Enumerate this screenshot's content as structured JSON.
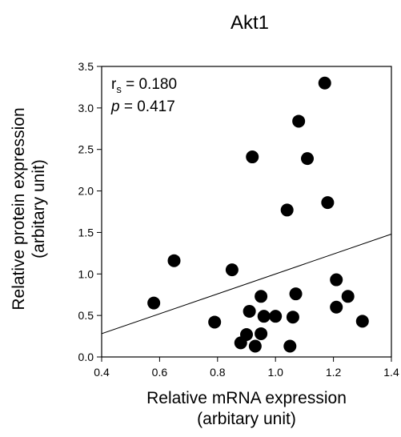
{
  "chart_data": {
    "type": "scatter",
    "title": "Akt1",
    "xlabel": [
      "Relative mRNA expression",
      "(arbitary unit)"
    ],
    "ylabel": [
      "Relative protein expression",
      "(arbitary unit)"
    ],
    "xlim": [
      0.4,
      1.4
    ],
    "ylim": [
      0.0,
      3.5
    ],
    "xticks": [
      "0.4",
      "0.6",
      "0.8",
      "1.0",
      "1.2",
      "1.4"
    ],
    "yticks": [
      "0.0",
      "0.5",
      "1.0",
      "1.5",
      "2.0",
      "2.5",
      "3.0",
      "3.5"
    ],
    "grid": false,
    "legend": "none",
    "annotations": {
      "rs_symbol": "r",
      "rs_subscript": "s",
      "rs_value": " = 0.180",
      "p_symbol": "p",
      "p_value": " = 0.417"
    },
    "points": [
      {
        "x": 0.58,
        "y": 0.65
      },
      {
        "x": 0.65,
        "y": 1.16
      },
      {
        "x": 0.79,
        "y": 0.42
      },
      {
        "x": 0.85,
        "y": 1.05
      },
      {
        "x": 0.88,
        "y": 0.17
      },
      {
        "x": 0.9,
        "y": 0.27
      },
      {
        "x": 0.91,
        "y": 0.55
      },
      {
        "x": 0.92,
        "y": 2.41
      },
      {
        "x": 0.93,
        "y": 0.13
      },
      {
        "x": 0.95,
        "y": 0.73
      },
      {
        "x": 0.95,
        "y": 0.28
      },
      {
        "x": 0.96,
        "y": 0.49
      },
      {
        "x": 1.0,
        "y": 0.49
      },
      {
        "x": 1.04,
        "y": 1.77
      },
      {
        "x": 1.05,
        "y": 0.13
      },
      {
        "x": 1.06,
        "y": 0.48
      },
      {
        "x": 1.07,
        "y": 0.76
      },
      {
        "x": 1.08,
        "y": 2.84
      },
      {
        "x": 1.11,
        "y": 2.39
      },
      {
        "x": 1.17,
        "y": 3.3
      },
      {
        "x": 1.18,
        "y": 1.86
      },
      {
        "x": 1.21,
        "y": 0.93
      },
      {
        "x": 1.21,
        "y": 0.6
      },
      {
        "x": 1.25,
        "y": 0.73
      },
      {
        "x": 1.3,
        "y": 0.43
      }
    ],
    "regression_line": {
      "x": [
        0.4,
        1.4
      ],
      "y": [
        0.28,
        1.48
      ]
    },
    "colors": {
      "marker": "#000000",
      "line": "#000000"
    }
  }
}
